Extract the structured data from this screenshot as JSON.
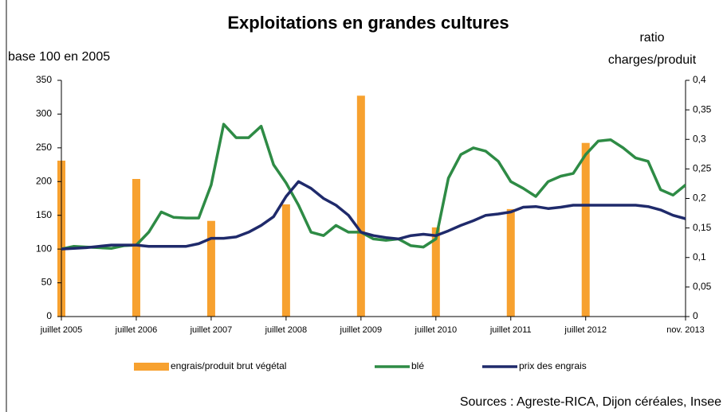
{
  "chart_data": {
    "type": "combo",
    "title": "Exploitations en grandes cultures",
    "y_label": "base 100 en 2005",
    "y2_label": [
      "ratio",
      "charges/produit"
    ],
    "y2_label_color": "#f7a12f",
    "source": "Sources : Agreste-RICA, Dijon céréales, Insee",
    "xlim": [
      0,
      100
    ],
    "xticks": [
      {
        "value": 0,
        "label": "juillet 2005"
      },
      {
        "value": 12,
        "label": "juillet 2006"
      },
      {
        "value": 24,
        "label": "juillet 2007"
      },
      {
        "value": 36,
        "label": "juillet 2008"
      },
      {
        "value": 48,
        "label": "juillet 2009"
      },
      {
        "value": 60,
        "label": "juillet 2010"
      },
      {
        "value": 72,
        "label": "juillet 2011"
      },
      {
        "value": 84,
        "label": "juillet 2012"
      },
      {
        "value": 100,
        "label": "nov. 2013"
      }
    ],
    "ylim": [
      0,
      350
    ],
    "yticks": [
      0,
      50,
      100,
      150,
      200,
      250,
      300,
      350
    ],
    "y2lim": [
      0,
      0.4
    ],
    "y2ticks": [
      0,
      {
        "value": 0.05,
        "label": "0,05"
      },
      {
        "value": 0.1,
        "label": "0,1"
      },
      {
        "value": 0.15,
        "label": "0,15"
      },
      {
        "value": 0.2,
        "label": "0,2"
      },
      {
        "value": 0.25,
        "label": "0,25"
      },
      {
        "value": 0.3,
        "label": "0,3"
      },
      {
        "value": 0.35,
        "label": "0,35"
      },
      {
        "value": 0.4,
        "label": "0,4"
      }
    ],
    "grid": false,
    "series": [
      {
        "name": "engrais/produit brut végétal",
        "type": "bar",
        "axis": "y2",
        "color": "#f7a12f",
        "x": [
          0,
          12,
          24,
          36,
          48,
          60,
          72,
          84
        ],
        "values": [
          0.264,
          0.233,
          0.162,
          0.19,
          0.374,
          0.151,
          0.182,
          0.294
        ]
      },
      {
        "name": "blé",
        "type": "line",
        "color": "#2e8b45",
        "x": [
          0,
          2,
          4,
          6,
          8,
          10,
          12,
          14,
          16,
          18,
          20,
          22,
          24,
          26,
          28,
          30,
          32,
          34,
          36,
          38,
          40,
          42,
          44,
          46,
          48,
          50,
          52,
          54,
          56,
          58,
          60,
          62,
          64,
          66,
          68,
          70,
          72,
          74,
          76,
          78,
          80,
          82,
          84,
          86,
          88,
          90,
          92,
          94,
          96,
          98,
          100
        ],
        "values": [
          100,
          104,
          103,
          102,
          101,
          105,
          106,
          125,
          155,
          147,
          146,
          146,
          195,
          285,
          265,
          265,
          282,
          225,
          198,
          165,
          125,
          120,
          135,
          125,
          125,
          115,
          113,
          115,
          105,
          103,
          115,
          205,
          240,
          250,
          245,
          230,
          200,
          190,
          178,
          200,
          208,
          212,
          240,
          260,
          262,
          250,
          235,
          230,
          188,
          180,
          195
        ]
      },
      {
        "name": "prix des engrais",
        "type": "line",
        "color": "#1f2a6b",
        "x": [
          0,
          2,
          4,
          6,
          8,
          10,
          12,
          14,
          16,
          18,
          20,
          22,
          24,
          26,
          28,
          30,
          32,
          34,
          36,
          38,
          40,
          42,
          44,
          46,
          48,
          50,
          52,
          54,
          56,
          58,
          60,
          62,
          64,
          66,
          68,
          70,
          72,
          74,
          76,
          78,
          80,
          82,
          84,
          86,
          88,
          90,
          92,
          94,
          96,
          98,
          100
        ],
        "values": [
          100,
          101,
          102,
          104,
          106,
          106,
          106,
          104,
          104,
          104,
          104,
          108,
          116,
          116,
          118,
          125,
          135,
          148,
          178,
          200,
          190,
          175,
          165,
          150,
          125,
          120,
          117,
          115,
          120,
          122,
          120,
          127,
          135,
          142,
          150,
          152,
          155,
          162,
          163,
          160,
          162,
          165,
          165,
          165,
          165,
          165,
          165,
          163,
          158,
          150,
          145
        ]
      }
    ]
  }
}
